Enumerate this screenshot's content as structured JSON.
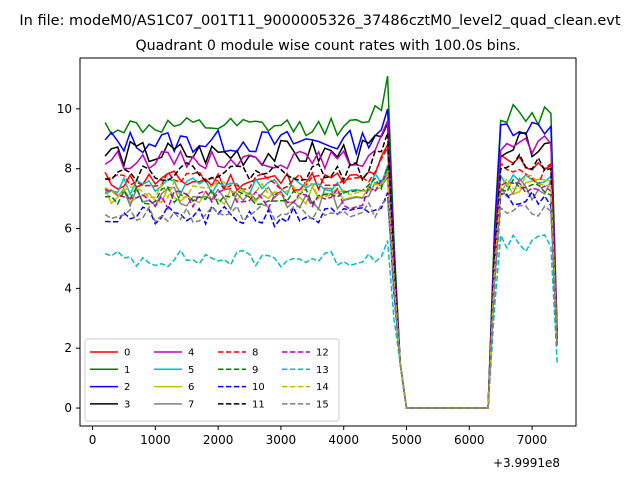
{
  "suptitle": "In file: modeM0/AS1C07_001T11_9000005326_37486cztM0_level2_quad_clean.evt",
  "chart_data": {
    "type": "line",
    "title": "Quadrant 0 module wise count rates with 100.0s bins.",
    "xlabel": "",
    "ylabel": "",
    "x_offset_label": "+3.9991e8",
    "xlim": [
      -200,
      7700
    ],
    "ylim": [
      -0.6,
      11.7
    ],
    "xticks": [
      0,
      1000,
      2000,
      3000,
      4000,
      5000,
      6000,
      7000
    ],
    "yticks": [
      0,
      2,
      4,
      6,
      8,
      10
    ],
    "grid": false,
    "legend": {
      "location": "lower-left",
      "columns": 4
    },
    "x": {
      "segment1": [
        200,
        300,
        400,
        500,
        600,
        700,
        800,
        900,
        1000,
        1100,
        1200,
        1300,
        1400,
        1500,
        1600,
        1700,
        1800,
        1900,
        2000,
        2100,
        2200,
        2300,
        2400,
        2500,
        2600,
        2700,
        2800,
        2900,
        3000,
        3100,
        3200,
        3300,
        3400,
        3500,
        3600,
        3700,
        3800,
        3900,
        4000,
        4100,
        4200,
        4300,
        4400,
        4500,
        4600,
        4700
      ],
      "descent": [
        4800,
        4900,
        5000
      ],
      "gap": [
        5000,
        6300
      ],
      "ascent": [
        6300,
        6400
      ],
      "segment2": [
        6500,
        6600,
        6700,
        6800,
        6900,
        7000,
        7100,
        7200,
        7300
      ],
      "end": 7400
    },
    "series": [
      {
        "name": "0",
        "color": "#ff0000",
        "dash": "solid",
        "base1": 7.6,
        "amp1": 0.35,
        "base2": 8.2,
        "amp2": 0.4,
        "peak": 8.8,
        "endval": 2.4,
        "seed": 11
      },
      {
        "name": "1",
        "color": "#008000",
        "dash": "solid",
        "base1": 9.4,
        "amp1": 0.3,
        "base2": 9.9,
        "amp2": 0.5,
        "peak": 11.1,
        "endval": 2.5,
        "seed": 12
      },
      {
        "name": "2",
        "color": "#0000ff",
        "dash": "solid",
        "base1": 8.9,
        "amp1": 0.4,
        "base2": 9.4,
        "amp2": 0.3,
        "peak": 10.0,
        "endval": 2.4,
        "seed": 13
      },
      {
        "name": "3",
        "color": "#000000",
        "dash": "solid",
        "base1": 8.5,
        "amp1": 0.45,
        "base2": 8.8,
        "amp2": 0.4,
        "peak": 9.5,
        "endval": 2.3,
        "seed": 14
      },
      {
        "name": "4",
        "color": "#bf00bf",
        "dash": "solid",
        "base1": 8.3,
        "amp1": 0.3,
        "base2": 8.7,
        "amp2": 0.4,
        "peak": 9.6,
        "endval": 2.3,
        "seed": 15
      },
      {
        "name": "5",
        "color": "#00bfbf",
        "dash": "solid",
        "base1": 7.4,
        "amp1": 0.3,
        "base2": 7.6,
        "amp2": 0.3,
        "peak": 8.1,
        "endval": 2.2,
        "seed": 16
      },
      {
        "name": "6",
        "color": "#bfbf00",
        "dash": "solid",
        "base1": 7.1,
        "amp1": 0.3,
        "base2": 7.4,
        "amp2": 0.3,
        "peak": 7.9,
        "endval": 2.2,
        "seed": 17
      },
      {
        "name": "7",
        "color": "#808080",
        "dash": "solid",
        "base1": 7.0,
        "amp1": 0.4,
        "base2": 7.3,
        "amp2": 0.4,
        "peak": 7.7,
        "endval": 2.1,
        "seed": 18
      },
      {
        "name": "8",
        "color": "#ff0000",
        "dash": "dashed",
        "base1": 7.6,
        "amp1": 0.3,
        "base2": 7.8,
        "amp2": 0.4,
        "peak": 8.7,
        "endval": 2.3,
        "seed": 19
      },
      {
        "name": "9",
        "color": "#008000",
        "dash": "dashed",
        "base1": 7.1,
        "amp1": 0.3,
        "base2": 7.4,
        "amp2": 0.3,
        "peak": 8.1,
        "endval": 2.2,
        "seed": 20
      },
      {
        "name": "10",
        "color": "#0000ff",
        "dash": "dashed",
        "base1": 6.4,
        "amp1": 0.35,
        "base2": 7.0,
        "amp2": 0.3,
        "peak": 7.2,
        "endval": 2.1,
        "seed": 21
      },
      {
        "name": "11",
        "color": "#000000",
        "dash": "dashed",
        "base1": 7.9,
        "amp1": 0.3,
        "base2": 8.2,
        "amp2": 0.3,
        "peak": 9.2,
        "endval": 2.2,
        "seed": 22
      },
      {
        "name": "12",
        "color": "#bf00bf",
        "dash": "dashed",
        "base1": 7.0,
        "amp1": 0.35,
        "base2": 7.4,
        "amp2": 0.3,
        "peak": 7.8,
        "endval": 2.1,
        "seed": 23
      },
      {
        "name": "13",
        "color": "#00bfbf",
        "dash": "dashed",
        "base1": 5.0,
        "amp1": 0.3,
        "base2": 5.5,
        "amp2": 0.3,
        "peak": 5.6,
        "endval": 1.5,
        "seed": 24
      },
      {
        "name": "14",
        "color": "#bfbf00",
        "dash": "dashed",
        "base1": 7.3,
        "amp1": 0.3,
        "base2": 7.5,
        "amp2": 0.3,
        "peak": 7.8,
        "endval": 2.2,
        "seed": 25
      },
      {
        "name": "15",
        "color": "#808080",
        "dash": "dashed",
        "base1": 6.5,
        "amp1": 0.3,
        "base2": 6.6,
        "amp2": 0.2,
        "peak": 7.0,
        "endval": 2.0,
        "seed": 26
      }
    ]
  }
}
